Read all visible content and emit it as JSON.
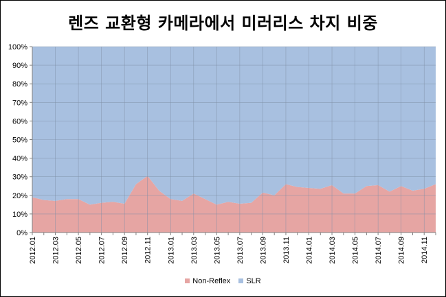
{
  "chart_data": {
    "type": "area",
    "title": "렌즈 교환형 카메라에서 미러리스 차지 비중",
    "stacked": true,
    "percent_stacked": true,
    "ylim": [
      0,
      100
    ],
    "y_ticks": [
      "0%",
      "10%",
      "20%",
      "30%",
      "40%",
      "50%",
      "60%",
      "70%",
      "80%",
      "90%",
      "100%"
    ],
    "x": [
      "2012.01",
      "2012.02",
      "2012.03",
      "2012.04",
      "2012.05",
      "2012.06",
      "2012.07",
      "2012.08",
      "2012.09",
      "2012.10",
      "2012.11",
      "2012.12",
      "2013.01",
      "2013.02",
      "2013.03",
      "2013.04",
      "2013.05",
      "2013.06",
      "2013.07",
      "2013.08",
      "2013.09",
      "2013.10",
      "2013.11",
      "2013.12",
      "2014.01",
      "2014.02",
      "2014.03",
      "2014.04",
      "2014.05",
      "2014.06",
      "2014.07",
      "2014.08",
      "2014.09",
      "2014.10",
      "2014.11",
      "2014.12"
    ],
    "x_tick_labels": [
      "2012.01",
      "2012.03",
      "2012.05",
      "2012.07",
      "2012.09",
      "2012.11",
      "2013.01",
      "2013.03",
      "2013.05",
      "2013.07",
      "2013.09",
      "2013.11",
      "2014.01",
      "2014.03",
      "2014.05",
      "2014.07",
      "2014.09",
      "2014.11"
    ],
    "grid": true,
    "legend_position": "bottom",
    "series": [
      {
        "name": "Non-Reflex",
        "color": "#e6a5a3",
        "values": [
          19,
          17.5,
          17,
          18,
          18,
          15,
          16,
          16.5,
          15.5,
          26,
          30.5,
          22.5,
          18,
          17,
          21,
          18,
          15,
          16.5,
          15.5,
          16,
          21.5,
          20,
          26,
          24.5,
          24,
          23.5,
          25.5,
          21,
          21,
          25,
          25.5,
          22,
          25,
          22.5,
          23.5,
          26
        ]
      },
      {
        "name": "SLR",
        "color": "#a8c0e0",
        "values": [
          81,
          82.5,
          83,
          82,
          82,
          85,
          84,
          83.5,
          84.5,
          74,
          69.5,
          77.5,
          82,
          83,
          79,
          82,
          85,
          83.5,
          84.5,
          84,
          78.5,
          80,
          74,
          75.5,
          76,
          76.5,
          74.5,
          79,
          79,
          75,
          74.5,
          78,
          75,
          77.5,
          76.5,
          74
        ]
      }
    ]
  }
}
